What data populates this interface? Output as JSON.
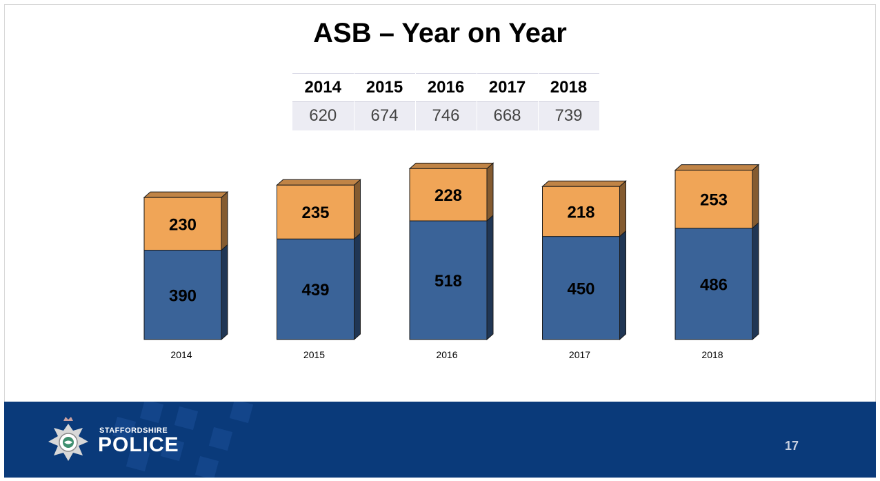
{
  "slide": {
    "title": "ASB – Year on Year",
    "page_number": "17"
  },
  "summary_table": {
    "years": [
      "2014",
      "2015",
      "2016",
      "2017",
      "2018"
    ],
    "totals": [
      "620",
      "674",
      "746",
      "668",
      "739"
    ]
  },
  "footer": {
    "org_line1": "STAFFORDSHIRE",
    "org_line2": "POLICE",
    "brand_color": "#0a3a7a"
  },
  "chart_data": {
    "type": "bar",
    "stacked": true,
    "style": "3d",
    "categories": [
      "2014",
      "2015",
      "2016",
      "2017",
      "2018"
    ],
    "series": [
      {
        "values": [
          390,
          439,
          518,
          450,
          486
        ],
        "color": "#3a6398"
      },
      {
        "values": [
          230,
          235,
          228,
          218,
          253
        ],
        "color": "#f0a557"
      }
    ],
    "title": "",
    "xlabel": "",
    "ylabel": "",
    "grid": false,
    "legend": "none",
    "data_labels": true
  }
}
